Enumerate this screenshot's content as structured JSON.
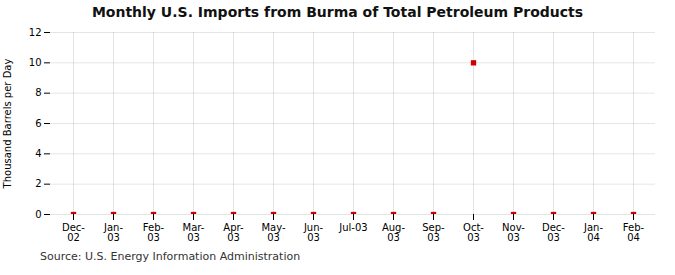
{
  "chart_data": {
    "type": "scatter",
    "title": "Monthly U.S. Imports from Burma of Total Petroleum Products",
    "ylabel": "Thousand Barrels per Day",
    "source": "Source: U.S. Energy Information Administration",
    "categories": [
      "Dec-\n02",
      "Jan-\n03",
      "Feb-\n03",
      "Mar-\n03",
      "Apr-\n03",
      "May-\n03",
      "Jun-\n03",
      "Jul-03",
      "Aug-\n03",
      "Sep-\n03",
      "Oct-\n03",
      "Nov-\n03",
      "Dec-\n03",
      "Jan-\n04",
      "Feb-\n04"
    ],
    "values": [
      0,
      0,
      0,
      0,
      0,
      0,
      0,
      0,
      0,
      0,
      10,
      0,
      0,
      0,
      0
    ],
    "color": "#cc0000",
    "marker": "square",
    "ylim": [
      0,
      12
    ],
    "yticks": [
      0,
      2,
      4,
      6,
      8,
      10,
      12
    ],
    "grid": true
  }
}
